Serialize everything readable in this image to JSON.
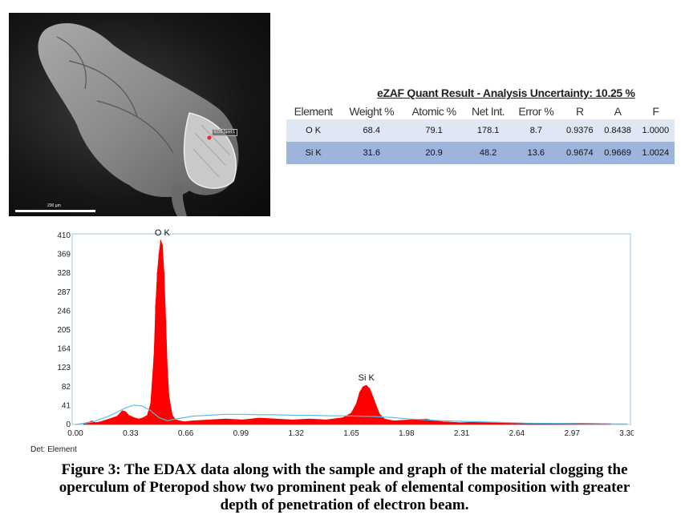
{
  "sem_image": {
    "spot_label": "EDS Spot 1",
    "scale_label": "200 µm"
  },
  "quant": {
    "title": "eZAF Quant Result - Analysis Uncertainty: 10.25 %",
    "headers": [
      "Element",
      "Weight %",
      "Atomic %",
      "Net Int.",
      "Error %",
      "R",
      "A",
      "F"
    ],
    "rows": [
      [
        "O K",
        "68.4",
        "79.1",
        "178.1",
        "8.7",
        "0.9376",
        "0.8438",
        "1.0000"
      ],
      [
        "Si K",
        "31.6",
        "20.9",
        "48.2",
        "13.6",
        "0.9674",
        "0.9669",
        "1.0024"
      ]
    ]
  },
  "chart_data": {
    "type": "area",
    "title": "",
    "xlabel": "",
    "ylabel": "",
    "xlim": [
      0,
      3.3
    ],
    "ylim": [
      0,
      410
    ],
    "x_ticks": [
      "0.00",
      "0.33",
      "0.66",
      "0.99",
      "1.32",
      "1.65",
      "1.98",
      "2.31",
      "2.64",
      "2.97",
      "3.30"
    ],
    "y_ticks": [
      "0",
      "41",
      "82",
      "123",
      "164",
      "205",
      "246",
      "287",
      "328",
      "369",
      "410"
    ],
    "peaks": [
      {
        "label": "O K",
        "x": 0.52,
        "y": 400
      },
      {
        "label": "Si K",
        "x": 1.74,
        "y": 85
      }
    ],
    "series": [
      {
        "name": "spectrum",
        "color": "#ff0000",
        "x": [
          0.05,
          0.08,
          0.1,
          0.12,
          0.15,
          0.2,
          0.25,
          0.28,
          0.3,
          0.32,
          0.35,
          0.38,
          0.4,
          0.43,
          0.45,
          0.47,
          0.48,
          0.49,
          0.5,
          0.51,
          0.52,
          0.53,
          0.54,
          0.55,
          0.56,
          0.58,
          0.6,
          0.65,
          0.7,
          0.8,
          0.9,
          1.0,
          1.1,
          1.2,
          1.3,
          1.4,
          1.5,
          1.6,
          1.65,
          1.68,
          1.7,
          1.72,
          1.74,
          1.76,
          1.78,
          1.8,
          1.82,
          1.85,
          1.9,
          2.0,
          2.1,
          2.15,
          2.2,
          2.3,
          2.4,
          2.6,
          2.8,
          3.0,
          3.2
        ],
        "y": [
          3,
          5,
          8,
          4,
          6,
          12,
          18,
          30,
          28,
          20,
          15,
          12,
          14,
          20,
          45,
          150,
          260,
          330,
          370,
          400,
          390,
          330,
          230,
          120,
          60,
          20,
          10,
          6,
          8,
          10,
          12,
          10,
          14,
          12,
          10,
          12,
          10,
          15,
          25,
          45,
          70,
          82,
          85,
          78,
          60,
          40,
          22,
          12,
          8,
          10,
          12,
          8,
          6,
          4,
          5,
          3,
          2,
          3,
          2
        ]
      },
      {
        "name": "background fit",
        "color": "#5bc0e0",
        "x": [
          0.0,
          0.1,
          0.2,
          0.3,
          0.35,
          0.4,
          0.45,
          0.5,
          0.55,
          0.6,
          0.7,
          0.8,
          0.9,
          1.0,
          1.1,
          1.2,
          1.3,
          1.4,
          1.5,
          1.6,
          1.7,
          1.8,
          1.9,
          2.0,
          2.1,
          2.2,
          2.3,
          2.5,
          2.7,
          3.0,
          3.3
        ],
        "y": [
          0,
          5,
          18,
          36,
          42,
          40,
          30,
          15,
          8,
          12,
          18,
          20,
          22,
          22,
          21,
          21,
          20,
          20,
          19,
          19,
          18,
          17,
          15,
          12,
          10,
          8,
          7,
          5,
          3,
          2,
          1
        ]
      }
    ]
  },
  "det_label": "Det: Element",
  "caption": [
    "Figure 3: The EDAX data along with the sample and graph of the material clogging the",
    "operculum of Pteropod show two prominent peak of elemental composition with greater",
    "depth of penetration of electron beam."
  ]
}
